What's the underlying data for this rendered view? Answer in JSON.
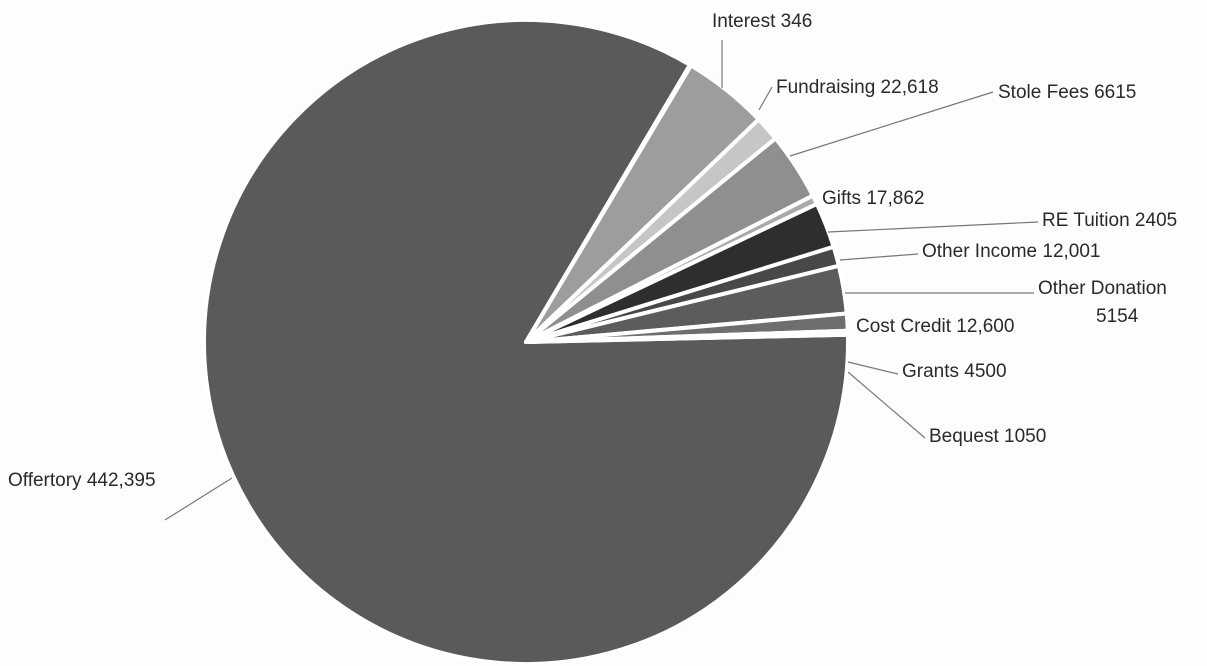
{
  "chart_data": {
    "type": "pie",
    "title": "",
    "slices": [
      {
        "name": "Offertory",
        "label": "Offertory 442,395",
        "value": 442395,
        "color": "#5a5a5a"
      },
      {
        "name": "Interest",
        "label": "Interest 346",
        "value": 346,
        "color": "#9a9a9a"
      },
      {
        "name": "Fundraising",
        "label": "Fundraising 22,618",
        "value": 22618,
        "color": "#9d9d9d"
      },
      {
        "name": "Stole Fees",
        "label": "Stole Fees 6615",
        "value": 6615,
        "color": "#c6c6c6"
      },
      {
        "name": "Gifts",
        "label": "Gifts 17,862",
        "value": 17862,
        "color": "#8f8f8f"
      },
      {
        "name": "RE Tuition",
        "label": "RE Tuition 2405",
        "value": 2405,
        "color": "#aaaaaa"
      },
      {
        "name": "Other Income",
        "label": "Other Income 12,001",
        "value": 12001,
        "color": "#2e2e2e"
      },
      {
        "name": "Other Donation",
        "label": [
          "Other Donation",
          "5154"
        ],
        "value": 5154,
        "color": "#484848"
      },
      {
        "name": "Cost Credit",
        "label": "Cost Credit 12,600",
        "value": 12600,
        "color": "#5c5c5c"
      },
      {
        "name": "Grants",
        "label": "Grants 4500",
        "value": 4500,
        "color": "#6e6e6e"
      },
      {
        "name": "Bequest",
        "label": "Bequest 1050",
        "value": 1050,
        "color": "#bdbdbd"
      }
    ]
  }
}
